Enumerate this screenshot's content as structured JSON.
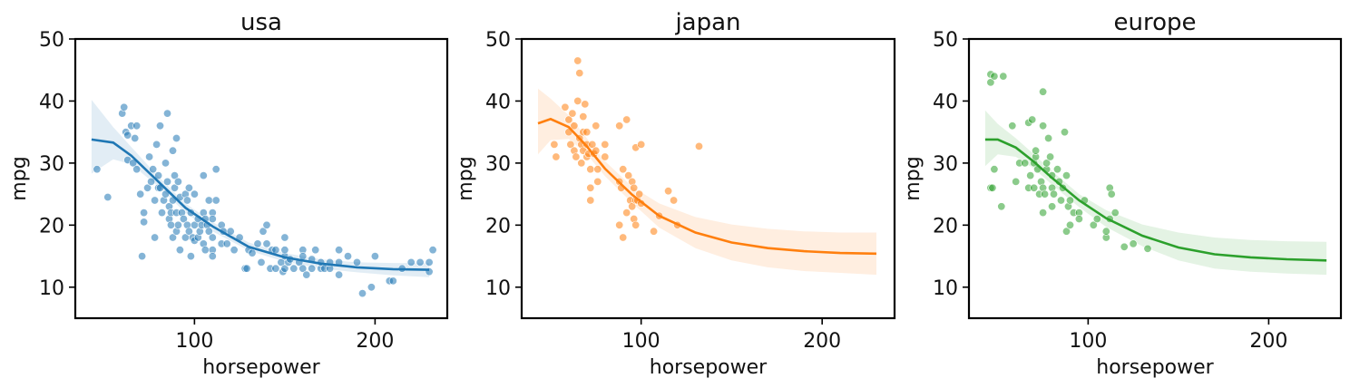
{
  "chart_data": [
    {
      "type": "scatter",
      "title": "usa",
      "xlabel": "horsepower",
      "ylabel": "mpg",
      "xlim": [
        34,
        240
      ],
      "ylim": [
        5,
        50
      ],
      "xticks": [
        100,
        200
      ],
      "yticks": [
        10,
        20,
        30,
        40,
        50
      ],
      "color": "#1f77b4",
      "points": [
        [
          46,
          29
        ],
        [
          52,
          24.5
        ],
        [
          60,
          38
        ],
        [
          61,
          39
        ],
        [
          62,
          35
        ],
        [
          63,
          34.5
        ],
        [
          63,
          30.5
        ],
        [
          65,
          36
        ],
        [
          66,
          30
        ],
        [
          67,
          34
        ],
        [
          68,
          29
        ],
        [
          68,
          36
        ],
        [
          70,
          25
        ],
        [
          71,
          15
        ],
        [
          72,
          22
        ],
        [
          72,
          20.5
        ],
        [
          74,
          26
        ],
        [
          75,
          31
        ],
        [
          76,
          27
        ],
        [
          77,
          29
        ],
        [
          78,
          18
        ],
        [
          78,
          24
        ],
        [
          79,
          33
        ],
        [
          80,
          26
        ],
        [
          80,
          28
        ],
        [
          81,
          26
        ],
        [
          81,
          36
        ],
        [
          82,
          22
        ],
        [
          83,
          24
        ],
        [
          84,
          25
        ],
        [
          84,
          30
        ],
        [
          85,
          38
        ],
        [
          85,
          27
        ],
        [
          86,
          23
        ],
        [
          86,
          21
        ],
        [
          87,
          22
        ],
        [
          87,
          20
        ],
        [
          88,
          32
        ],
        [
          88,
          24
        ],
        [
          88,
          18
        ],
        [
          89,
          28
        ],
        [
          89,
          26
        ],
        [
          90,
          22
        ],
        [
          90,
          19
        ],
        [
          90,
          34
        ],
        [
          91,
          20
        ],
        [
          91,
          27
        ],
        [
          92,
          24.5
        ],
        [
          92,
          16
        ],
        [
          93,
          22
        ],
        [
          94,
          21
        ],
        [
          95,
          25
        ],
        [
          95,
          18
        ],
        [
          96,
          24
        ],
        [
          96,
          20
        ],
        [
          97,
          19
        ],
        [
          97,
          26
        ],
        [
          98,
          22
        ],
        [
          98,
          15
        ],
        [
          99,
          18
        ],
        [
          100,
          17.5
        ],
        [
          100,
          20
        ],
        [
          100,
          25
        ],
        [
          102,
          21
        ],
        [
          102,
          18
        ],
        [
          103,
          19
        ],
        [
          104,
          20
        ],
        [
          105,
          22
        ],
        [
          105,
          17
        ],
        [
          105,
          28
        ],
        [
          106,
          21
        ],
        [
          106,
          16
        ],
        [
          107,
          20
        ],
        [
          108,
          24
        ],
        [
          108,
          19
        ],
        [
          110,
          18
        ],
        [
          110,
          22
        ],
        [
          110,
          16
        ],
        [
          110,
          21
        ],
        [
          110,
          15
        ],
        [
          112,
          29
        ],
        [
          112,
          24
        ],
        [
          115,
          20
        ],
        [
          115,
          17
        ],
        [
          116,
          19
        ],
        [
          118,
          17
        ],
        [
          120,
          19
        ],
        [
          122,
          16
        ],
        [
          125,
          18
        ],
        [
          128,
          13
        ],
        [
          129,
          13
        ],
        [
          130,
          16
        ],
        [
          132,
          15.5
        ],
        [
          135,
          17
        ],
        [
          137,
          14
        ],
        [
          138,
          19
        ],
        [
          140,
          20
        ],
        [
          140,
          17
        ],
        [
          142,
          13
        ],
        [
          143,
          16
        ],
        [
          145,
          16
        ],
        [
          145,
          13
        ],
        [
          148,
          14
        ],
        [
          149,
          12.5
        ],
        [
          150,
          13
        ],
        [
          150,
          18
        ],
        [
          150,
          15
        ],
        [
          150,
          16
        ],
        [
          152,
          14
        ],
        [
          153,
          14.5
        ],
        [
          155,
          13
        ],
        [
          158,
          14
        ],
        [
          160,
          16
        ],
        [
          160,
          15
        ],
        [
          160,
          13
        ],
        [
          162,
          12
        ],
        [
          165,
          14.5
        ],
        [
          165,
          13
        ],
        [
          167,
          16
        ],
        [
          170,
          13
        ],
        [
          170,
          14
        ],
        [
          172,
          13
        ],
        [
          175,
          13
        ],
        [
          175,
          14
        ],
        [
          180,
          16
        ],
        [
          180,
          14
        ],
        [
          180,
          12
        ],
        [
          185,
          15
        ],
        [
          190,
          14
        ],
        [
          193,
          9
        ],
        [
          198,
          10
        ],
        [
          200,
          15
        ],
        [
          208,
          11
        ],
        [
          210,
          11
        ],
        [
          215,
          13
        ],
        [
          220,
          14
        ],
        [
          225,
          14
        ],
        [
          230,
          14
        ],
        [
          230,
          12.5
        ],
        [
          232,
          16
        ]
      ],
      "fit": [
        [
          43,
          33.8
        ],
        [
          55,
          33.3
        ],
        [
          65,
          31.2
        ],
        [
          80,
          27
        ],
        [
          95,
          22.8
        ],
        [
          110,
          19.8
        ],
        [
          130,
          16.5
        ],
        [
          150,
          14.8
        ],
        [
          170,
          13.8
        ],
        [
          190,
          13.2
        ],
        [
          210,
          12.9
        ],
        [
          230,
          12.8
        ]
      ],
      "band": [
        [
          43,
          40.2,
          28.3
        ],
        [
          55,
          35.8,
          30.6
        ],
        [
          65,
          32.6,
          29.8
        ],
        [
          80,
          27.8,
          26.2
        ],
        [
          95,
          23.5,
          22
        ],
        [
          110,
          20.5,
          19
        ],
        [
          130,
          17.2,
          15.9
        ],
        [
          150,
          15.5,
          14.1
        ],
        [
          170,
          14.5,
          13
        ],
        [
          190,
          14,
          12.4
        ],
        [
          210,
          13.9,
          11.9
        ],
        [
          230,
          13.9,
          11.6
        ]
      ]
    },
    {
      "type": "scatter",
      "title": "japan",
      "xlabel": "horsepower",
      "ylabel": "mpg",
      "xlim": [
        34,
        240
      ],
      "ylim": [
        5,
        50
      ],
      "xticks": [
        100,
        200
      ],
      "yticks": [
        10,
        20,
        30,
        40,
        50
      ],
      "color": "#ff7f0e",
      "points": [
        [
          52,
          33
        ],
        [
          53,
          31
        ],
        [
          58,
          39
        ],
        [
          60,
          37
        ],
        [
          60,
          35
        ],
        [
          61,
          33
        ],
        [
          62,
          38
        ],
        [
          63,
          36
        ],
        [
          63,
          32
        ],
        [
          64,
          31
        ],
        [
          65,
          46.5
        ],
        [
          65,
          40
        ],
        [
          66,
          44.5
        ],
        [
          66,
          34
        ],
        [
          67,
          33
        ],
        [
          67,
          30
        ],
        [
          68,
          32
        ],
        [
          68,
          35
        ],
        [
          68,
          37.5
        ],
        [
          69,
          39.5
        ],
        [
          70,
          31
        ],
        [
          70,
          33
        ],
        [
          70,
          35
        ],
        [
          71,
          31.5
        ],
        [
          72,
          29
        ],
        [
          72,
          26
        ],
        [
          72,
          24
        ],
        [
          73,
          33
        ],
        [
          74,
          31.5
        ],
        [
          75,
          32
        ],
        [
          75,
          36
        ],
        [
          76,
          27
        ],
        [
          76,
          29
        ],
        [
          80,
          33
        ],
        [
          80,
          31
        ],
        [
          88,
          27
        ],
        [
          88,
          20
        ],
        [
          88,
          36
        ],
        [
          89,
          26
        ],
        [
          90,
          18
        ],
        [
          90,
          29
        ],
        [
          92,
          37
        ],
        [
          92,
          22
        ],
        [
          93,
          28
        ],
        [
          94,
          24
        ],
        [
          95,
          23
        ],
        [
          95,
          27
        ],
        [
          96,
          21
        ],
        [
          96,
          26
        ],
        [
          97,
          24
        ],
        [
          97,
          32.5
        ],
        [
          97,
          20
        ],
        [
          98,
          24
        ],
        [
          99,
          25
        ],
        [
          100,
          23.5
        ],
        [
          100,
          33
        ],
        [
          107,
          19
        ],
        [
          110,
          21.5
        ],
        [
          115,
          25.5
        ],
        [
          118,
          24
        ],
        [
          120,
          20
        ],
        [
          132,
          32.7
        ]
      ],
      "fit": [
        [
          43,
          36.4
        ],
        [
          50,
          37.1
        ],
        [
          60,
          35.8
        ],
        [
          70,
          32.7
        ],
        [
          80,
          29.1
        ],
        [
          95,
          24.9
        ],
        [
          110,
          21.5
        ],
        [
          130,
          18.8
        ],
        [
          150,
          17.2
        ],
        [
          170,
          16.3
        ],
        [
          190,
          15.8
        ],
        [
          210,
          15.5
        ],
        [
          230,
          15.4
        ]
      ],
      "band": [
        [
          43,
          42,
          31.4
        ],
        [
          50,
          40.4,
          33.7
        ],
        [
          60,
          37.7,
          33.9
        ],
        [
          70,
          34,
          31.4
        ],
        [
          80,
          30.3,
          27.9
        ],
        [
          95,
          26.2,
          23.6
        ],
        [
          110,
          23.5,
          19.6
        ],
        [
          130,
          21.3,
          16.3
        ],
        [
          150,
          20.1,
          14.3
        ],
        [
          170,
          19.4,
          13.2
        ],
        [
          190,
          19,
          12.6
        ],
        [
          210,
          18.8,
          12.3
        ],
        [
          230,
          18.8,
          12
        ]
      ]
    },
    {
      "type": "scatter",
      "title": "europe",
      "xlabel": "horsepower",
      "ylabel": "mpg",
      "xlim": [
        34,
        240
      ],
      "ylim": [
        5,
        50
      ],
      "xticks": [
        100,
        200
      ],
      "yticks": [
        10,
        20,
        30,
        40,
        50
      ],
      "color": "#2ca02c",
      "points": [
        [
          46,
          26
        ],
        [
          46,
          43
        ],
        [
          46,
          44.3
        ],
        [
          47,
          26
        ],
        [
          48,
          29
        ],
        [
          48,
          44
        ],
        [
          52,
          23
        ],
        [
          53,
          44
        ],
        [
          58,
          36
        ],
        [
          60,
          27
        ],
        [
          62,
          30
        ],
        [
          65,
          30
        ],
        [
          67,
          26
        ],
        [
          67,
          36.5
        ],
        [
          68,
          28
        ],
        [
          69,
          37
        ],
        [
          70,
          30
        ],
        [
          70,
          26
        ],
        [
          71,
          31
        ],
        [
          71,
          32
        ],
        [
          72,
          29
        ],
        [
          73,
          25
        ],
        [
          74,
          27
        ],
        [
          75,
          41.5
        ],
        [
          75,
          36
        ],
        [
          75,
          26
        ],
        [
          75,
          22
        ],
        [
          76,
          25
        ],
        [
          77,
          29
        ],
        [
          77,
          30
        ],
        [
          78,
          34
        ],
        [
          79,
          31
        ],
        [
          80,
          28
        ],
        [
          80,
          26
        ],
        [
          80,
          23
        ],
        [
          81,
          25
        ],
        [
          83,
          29
        ],
        [
          84,
          27
        ],
        [
          85,
          24
        ],
        [
          86,
          26
        ],
        [
          87,
          35
        ],
        [
          88,
          19
        ],
        [
          88,
          28
        ],
        [
          89,
          23
        ],
        [
          90,
          24
        ],
        [
          90,
          20
        ],
        [
          92,
          22
        ],
        [
          95,
          22
        ],
        [
          95,
          21
        ],
        [
          98,
          24
        ],
        [
          103,
          20
        ],
        [
          105,
          21
        ],
        [
          110,
          18
        ],
        [
          110,
          19
        ],
        [
          112,
          26
        ],
        [
          112,
          21
        ],
        [
          113,
          25
        ],
        [
          115,
          22
        ],
        [
          120,
          16.5
        ],
        [
          125,
          17
        ],
        [
          133,
          16.2
        ]
      ],
      "fit": [
        [
          43,
          33.8
        ],
        [
          50,
          33.8
        ],
        [
          60,
          32.5
        ],
        [
          70,
          30.2
        ],
        [
          80,
          27.6
        ],
        [
          95,
          24
        ],
        [
          110,
          21.1
        ],
        [
          130,
          18.3
        ],
        [
          150,
          16.4
        ],
        [
          170,
          15.3
        ],
        [
          190,
          14.8
        ],
        [
          210,
          14.5
        ],
        [
          232,
          14.3
        ]
      ],
      "band": [
        [
          43,
          38.5,
          29.5
        ],
        [
          50,
          36.3,
          31.4
        ],
        [
          60,
          34,
          31
        ],
        [
          70,
          31.4,
          29.1
        ],
        [
          80,
          28.7,
          26.5
        ],
        [
          95,
          25,
          22.9
        ],
        [
          110,
          22.4,
          19.7
        ],
        [
          130,
          20.1,
          16.6
        ],
        [
          150,
          18.8,
          14.3
        ],
        [
          170,
          18,
          13
        ],
        [
          190,
          17.6,
          12.5
        ],
        [
          210,
          17.4,
          12.2
        ],
        [
          232,
          17.3,
          12
        ]
      ]
    }
  ]
}
